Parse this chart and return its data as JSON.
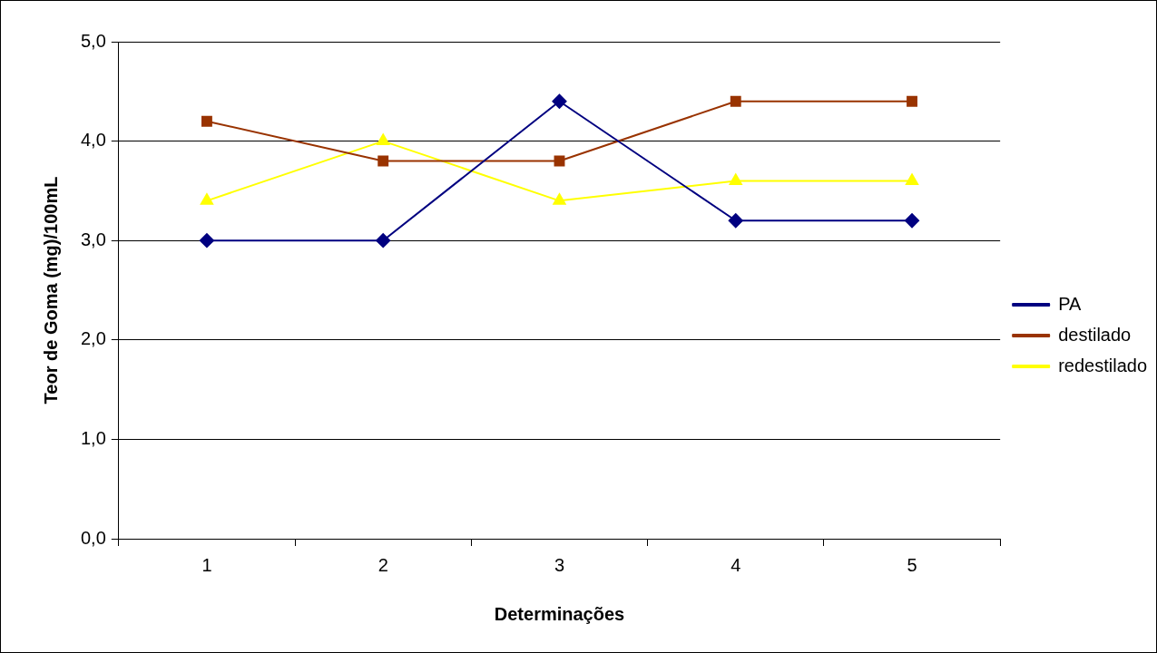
{
  "chart_data": {
    "type": "line",
    "xlabel": "Determinações",
    "ylabel": "Teor de Goma (mg)/100mL",
    "categories": [
      "1",
      "2",
      "3",
      "4",
      "5"
    ],
    "series": [
      {
        "name": "PA",
        "color": "#000080",
        "marker": "diamond",
        "values": [
          3.0,
          3.0,
          4.4,
          3.2,
          3.2
        ]
      },
      {
        "name": "destilado",
        "color": "#993300",
        "marker": "square",
        "values": [
          4.2,
          3.8,
          3.8,
          4.4,
          4.4
        ]
      },
      {
        "name": "redestilado",
        "color": "#ffff00",
        "marker": "triangle",
        "values": [
          3.4,
          4.0,
          3.4,
          3.6,
          3.6
        ]
      }
    ],
    "ylim": [
      0,
      5
    ],
    "yticks": [
      {
        "value": 0,
        "label": "0,0"
      },
      {
        "value": 1,
        "label": "1,0"
      },
      {
        "value": 2,
        "label": "2,0"
      },
      {
        "value": 3,
        "label": "3,0"
      },
      {
        "value": 4,
        "label": "4,0"
      },
      {
        "value": 5,
        "label": "5,0"
      }
    ],
    "grid": "y",
    "legend": "right",
    "line_style": "solid"
  }
}
